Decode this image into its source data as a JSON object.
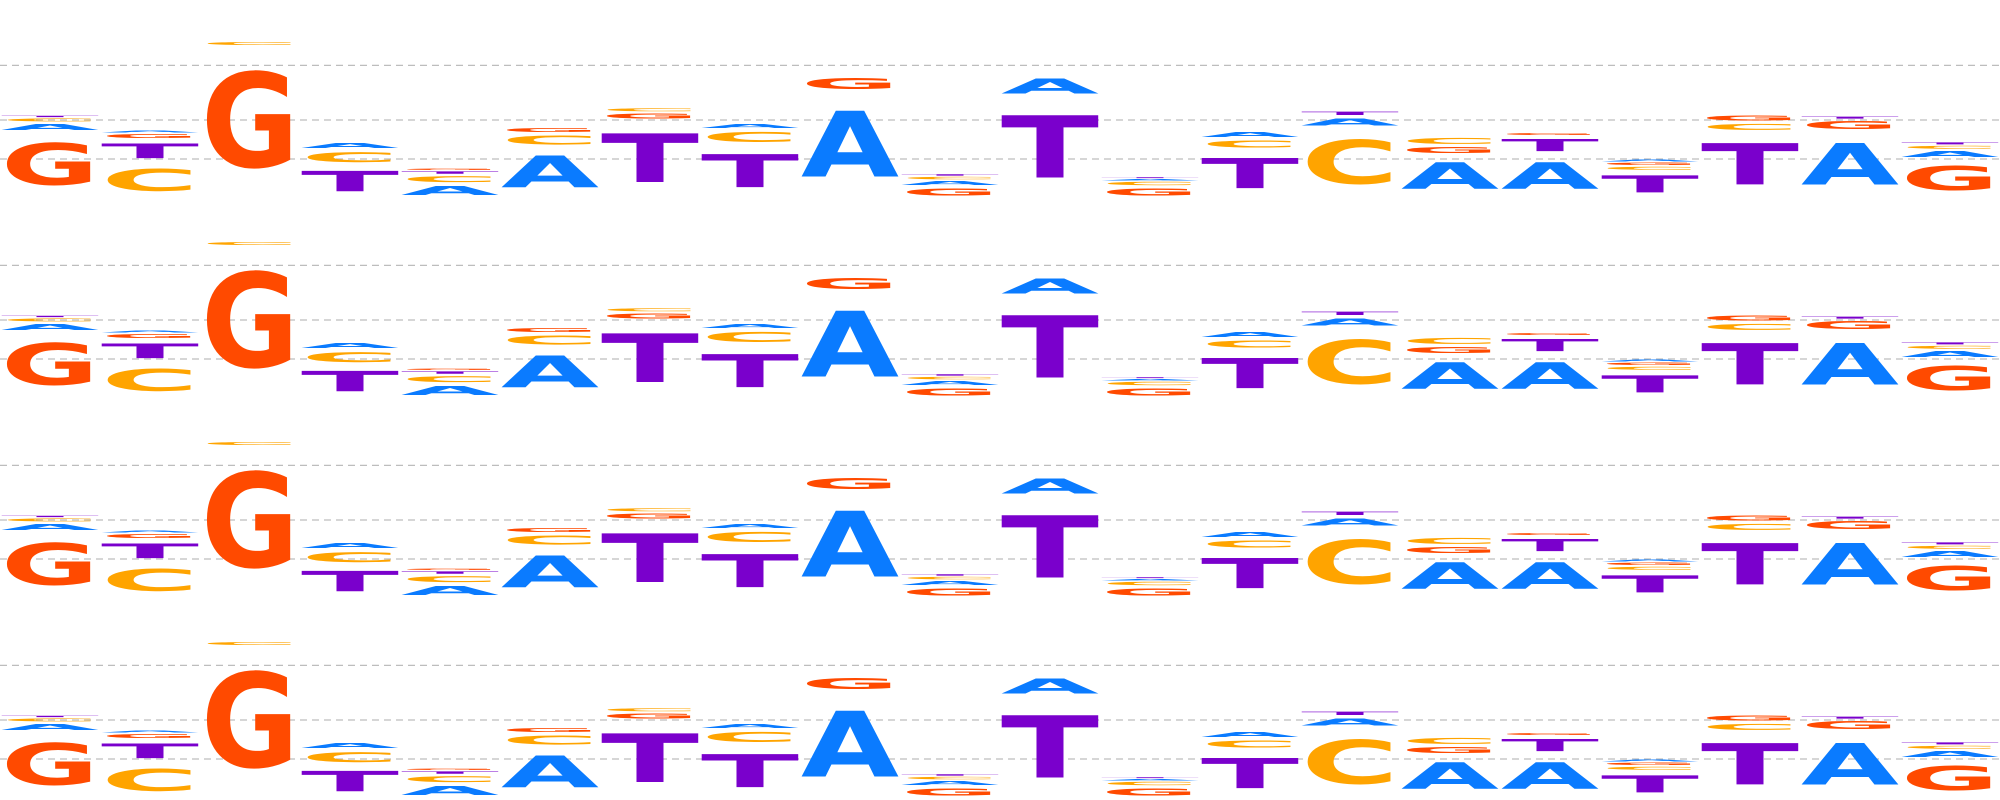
{
  "logo": {
    "colors": {
      "A": "#0A7BFF",
      "C": "#FFA400",
      "G": "#FF4A00",
      "T": "#7A00CC"
    },
    "gridline_levels_bits": [
      0.5,
      1.0,
      1.7
    ],
    "max_bits": 2.2,
    "row_count": 4,
    "positions": [
      [
        {
          "b": "G",
          "h": 0.85
        },
        {
          "b": "A",
          "h": 0.12
        },
        {
          "b": "C",
          "h": 0.06
        },
        {
          "b": "T",
          "h": 0.03
        }
      ],
      [
        {
          "b": "C",
          "h": 0.45
        },
        {
          "b": "T",
          "h": 0.3
        },
        {
          "b": "G",
          "h": 0.08
        },
        {
          "b": "A",
          "h": 0.04
        }
      ],
      [
        {
          "b": "G",
          "h": 1.95
        },
        {
          "b": "C",
          "h": 0.06
        }
      ],
      [
        {
          "b": "T",
          "h": 0.42
        },
        {
          "b": "C",
          "h": 0.2
        },
        {
          "b": "A",
          "h": 0.1
        }
      ],
      [
        {
          "b": "A",
          "h": 0.18
        },
        {
          "b": "C",
          "h": 0.12
        },
        {
          "b": "T",
          "h": 0.05
        },
        {
          "b": "G",
          "h": 0.03
        }
      ],
      [
        {
          "b": "A",
          "h": 0.65
        },
        {
          "b": "C",
          "h": 0.18
        },
        {
          "b": "G",
          "h": 0.08
        }
      ],
      [
        {
          "b": "T",
          "h": 1.0
        },
        {
          "b": "C",
          "h": 0.06
        },
        {
          "b": "G",
          "h": 0.1
        }
      ],
      [
        {
          "b": "T",
          "h": 0.68
        },
        {
          "b": "C",
          "h": 0.2
        },
        {
          "b": "A",
          "h": 0.08
        }
      ],
      [
        {
          "b": "A",
          "h": 1.35
        },
        {
          "b": "G",
          "h": 0.22
        }
      ],
      [
        {
          "b": "G",
          "h": 0.15
        },
        {
          "b": "A",
          "h": 0.08
        },
        {
          "b": "C",
          "h": 0.05
        },
        {
          "b": "T",
          "h": 0.03
        }
      ],
      [
        {
          "b": "T",
          "h": 1.28
        },
        {
          "b": "A",
          "h": 0.3
        }
      ],
      [
        {
          "b": "G",
          "h": 0.15
        },
        {
          "b": "C",
          "h": 0.07
        },
        {
          "b": "A",
          "h": 0.03
        },
        {
          "b": "T",
          "h": 0.02
        }
      ],
      [
        {
          "b": "T",
          "h": 0.62
        },
        {
          "b": "C",
          "h": 0.14
        },
        {
          "b": "A",
          "h": 0.1
        }
      ],
      [
        {
          "b": "C",
          "h": 0.9
        },
        {
          "b": "A",
          "h": 0.15
        },
        {
          "b": "T",
          "h": 0.07
        }
      ],
      [
        {
          "b": "A",
          "h": 0.55
        },
        {
          "b": "C",
          "h": 0.12
        },
        {
          "b": "G",
          "h": 0.12
        }
      ],
      [
        {
          "b": "A",
          "h": 0.55
        },
        {
          "b": "T",
          "h": 0.25
        },
        {
          "b": "G",
          "h": 0.04
        }
      ],
      [
        {
          "b": "T",
          "h": 0.35
        },
        {
          "b": "C",
          "h": 0.06
        },
        {
          "b": "G",
          "h": 0.05
        },
        {
          "b": "A",
          "h": 0.04
        }
      ],
      [
        {
          "b": "T",
          "h": 0.85
        },
        {
          "b": "C",
          "h": 0.12
        },
        {
          "b": "G",
          "h": 0.1
        }
      ],
      [
        {
          "b": "A",
          "h": 0.85
        },
        {
          "b": "G",
          "h": 0.16
        },
        {
          "b": "T",
          "h": 0.04
        }
      ],
      [
        {
          "b": "G",
          "h": 0.5
        },
        {
          "b": "A",
          "h": 0.12
        },
        {
          "b": "C",
          "h": 0.06
        },
        {
          "b": "T",
          "h": 0.04
        }
      ]
    ]
  }
}
